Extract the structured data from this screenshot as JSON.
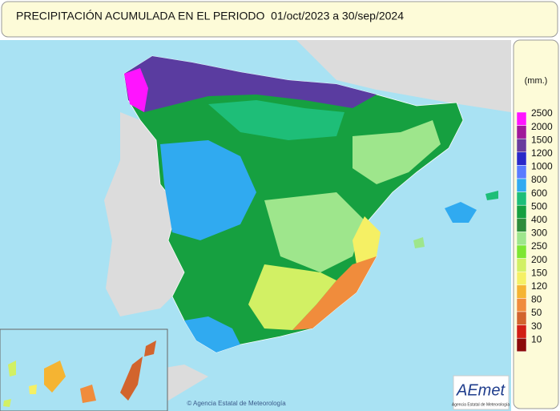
{
  "header": {
    "title": "PRECIPITACIÓN ACUMULADA EN EL PERIODO  01/oct/2023 a 30/sep/2024"
  },
  "legend": {
    "unit": "(mm.)",
    "items": [
      {
        "label": "2500",
        "color": "#ff14ff"
      },
      {
        "label": "2000",
        "color": "#a0189a"
      },
      {
        "label": "1500",
        "color": "#6a3c9c"
      },
      {
        "label": "1200",
        "color": "#2a28c8"
      },
      {
        "label": "1000",
        "color": "#5a7cff"
      },
      {
        "label": "800",
        "color": "#30aaf0"
      },
      {
        "label": "600",
        "color": "#1ebe78"
      },
      {
        "label": "500",
        "color": "#16a040"
      },
      {
        "label": "400",
        "color": "#2e8c3a"
      },
      {
        "label": "300",
        "color": "#9ee68c"
      },
      {
        "label": "250",
        "color": "#7ee632"
      },
      {
        "label": "200",
        "color": "#d2f064"
      },
      {
        "label": "150",
        "color": "#f5f064"
      },
      {
        "label": "120",
        "color": "#f5b432"
      },
      {
        "label": "80",
        "color": "#f08c3c"
      },
      {
        "label": "50",
        "color": "#d2642d"
      },
      {
        "label": "30",
        "color": "#d21e14"
      },
      {
        "label": "10",
        "color": "#8c0a0a"
      }
    ]
  },
  "map": {
    "credit": "© Agencia Estatal de Meteorología"
  },
  "logo": {
    "name": "AEmet",
    "caption": "Agencia Estatal de Meteorología"
  }
}
